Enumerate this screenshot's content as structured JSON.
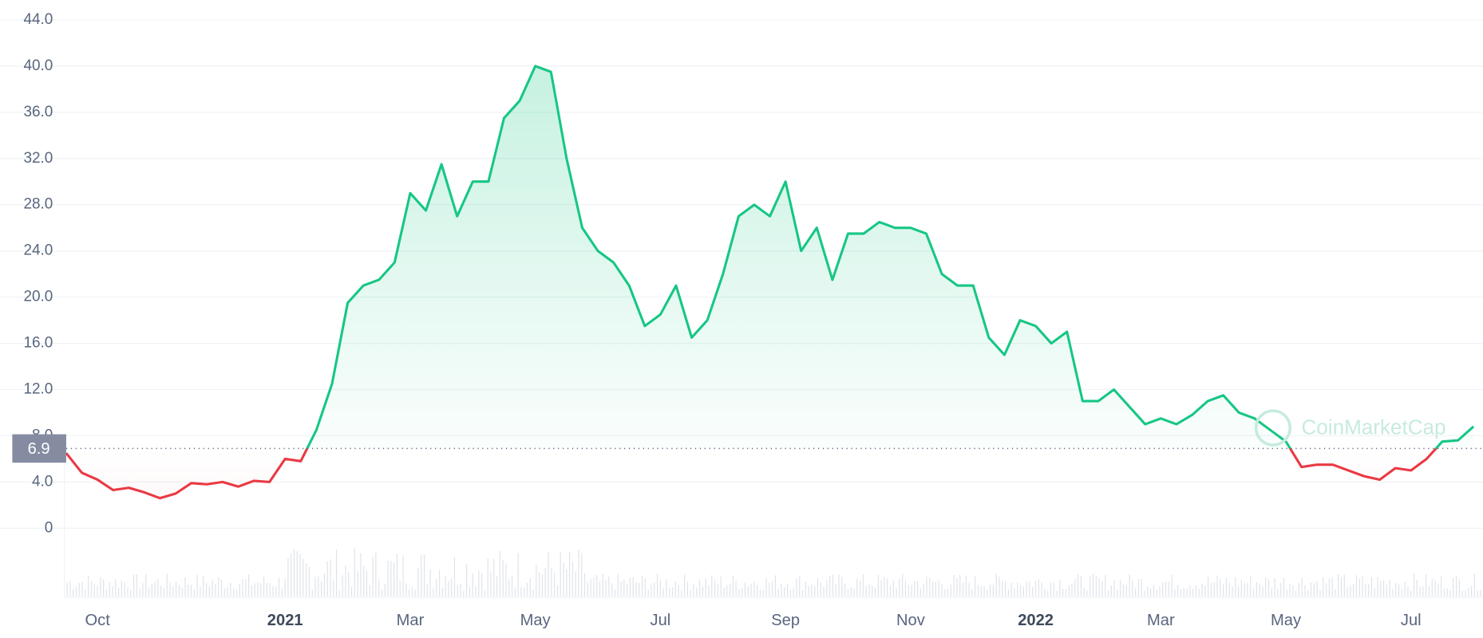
{
  "chart_data": {
    "type": "line",
    "categories": [
      null,
      null,
      "Oct",
      null,
      null,
      null,
      null,
      null,
      null,
      null,
      null,
      null,
      null,
      null,
      "2021",
      null,
      null,
      null,
      null,
      null,
      null,
      null,
      "Mar",
      null,
      null,
      null,
      null,
      null,
      null,
      null,
      "May",
      null,
      null,
      null,
      null,
      null,
      null,
      null,
      "Jul",
      null,
      null,
      null,
      null,
      null,
      null,
      null,
      "Sep",
      null,
      null,
      null,
      null,
      null,
      null,
      null,
      "Nov",
      null,
      null,
      null,
      null,
      null,
      null,
      null,
      "2022",
      null,
      null,
      null,
      null,
      null,
      null,
      null,
      "Mar",
      null,
      null,
      null,
      null,
      null,
      null,
      null,
      "May",
      null,
      null,
      null,
      null,
      null,
      null,
      null,
      "Jul",
      null,
      null,
      null,
      null
    ],
    "values": [
      6.5,
      4.8,
      4.2,
      3.3,
      3.5,
      3.1,
      2.6,
      3.0,
      3.9,
      3.8,
      4.0,
      3.6,
      4.1,
      4.0,
      6.0,
      5.8,
      8.5,
      12.5,
      19.5,
      21.0,
      21.5,
      23.0,
      29.0,
      27.5,
      31.5,
      27.0,
      30.0,
      30.0,
      35.5,
      37.0,
      40.0,
      39.5,
      32.0,
      26.0,
      24.0,
      23.0,
      21.0,
      17.5,
      18.5,
      21.0,
      16.5,
      18.0,
      22.0,
      27.0,
      28.0,
      27.0,
      30.0,
      24.0,
      26.0,
      21.5,
      25.5,
      25.5,
      26.5,
      26.0,
      26.0,
      25.5,
      22.0,
      21.0,
      21.0,
      16.5,
      15.0,
      18.0,
      17.5,
      16.0,
      17.0,
      11.0,
      11.0,
      12.0,
      10.5,
      9.0,
      9.5,
      9.0,
      9.8,
      11.0,
      11.5,
      10.0,
      9.5,
      8.5,
      7.5,
      5.3,
      5.5,
      5.5,
      5.0,
      4.5,
      4.2,
      5.2,
      5.0,
      6.0,
      7.5,
      7.6,
      8.8
    ],
    "baseline": 6.9,
    "up_color": "#16c784",
    "down_color": "#ea3943",
    "ylim": [
      0,
      44
    ],
    "yticks": [
      0,
      {
        "value": 4,
        "label": "4.0"
      },
      {
        "value": 8,
        "label": "8.0"
      },
      {
        "value": 12,
        "label": "12.0"
      },
      {
        "value": 16,
        "label": "16.0"
      },
      {
        "value": 20,
        "label": "20.0"
      },
      {
        "value": 24,
        "label": "24.0"
      },
      {
        "value": 28,
        "label": "28.0"
      },
      {
        "value": 32,
        "label": "32.0"
      },
      {
        "value": 36,
        "label": "36.0"
      },
      {
        "value": 40,
        "label": "40.0"
      },
      {
        "value": 44,
        "label": "44.0"
      }
    ],
    "grid": true,
    "watermark": "CoinMarketCap"
  }
}
